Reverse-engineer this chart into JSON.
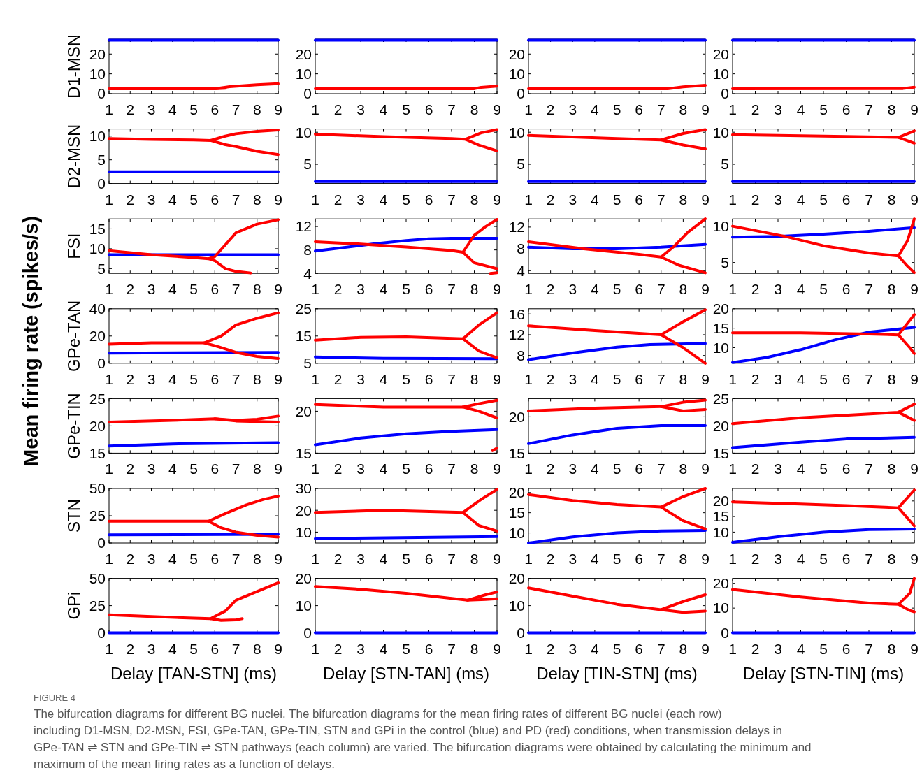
{
  "chart_data": [
    {
      "type": "line",
      "ylabel": "D1-MSN",
      "xlim": [
        1,
        9
      ],
      "xticks": [
        1,
        2,
        3,
        4,
        5,
        6,
        7,
        8,
        9
      ],
      "ylim": [
        0,
        27.5
      ],
      "yticks": [
        0,
        10,
        20
      ],
      "annotations": [
        "Mean firing rate (spikes/s)"
      ],
      "series": [
        {
          "color": "#0000ff",
          "x": [
            1,
            9
          ],
          "values": [
            27,
            27
          ]
        },
        {
          "color": "#ff0000",
          "x": [
            1,
            6,
            6.7,
            8,
            9
          ],
          "values": [
            2.5,
            2.5,
            3.5,
            4.5,
            5
          ]
        },
        {
          "color": "#ff0000",
          "x": [
            6,
            6.5
          ],
          "values": [
            2.5,
            2.7
          ]
        }
      ]
    },
    {
      "type": "line",
      "xlim": [
        1,
        9
      ],
      "xticks": [
        1,
        2,
        3,
        4,
        5,
        6,
        7,
        8,
        9
      ],
      "ylim": [
        0,
        27.5
      ],
      "yticks": [
        0,
        10,
        20
      ],
      "series": [
        {
          "color": "#0000ff",
          "x": [
            1,
            9
          ],
          "values": [
            27,
            27
          ]
        },
        {
          "color": "#ff0000",
          "x": [
            1,
            8,
            8.3,
            9
          ],
          "values": [
            2.5,
            2.5,
            3.2,
            3.8
          ]
        }
      ]
    },
    {
      "type": "line",
      "xlim": [
        1,
        9
      ],
      "xticks": [
        1,
        2,
        3,
        4,
        5,
        6,
        7,
        8,
        9
      ],
      "ylim": [
        0,
        27.5
      ],
      "yticks": [
        0,
        10,
        20
      ],
      "series": [
        {
          "color": "#0000ff",
          "x": [
            1,
            9
          ],
          "values": [
            27,
            27
          ]
        },
        {
          "color": "#ff0000",
          "x": [
            1,
            7.3,
            8,
            9
          ],
          "values": [
            2.5,
            2.5,
            3.4,
            4.2
          ]
        }
      ]
    },
    {
      "type": "line",
      "xlim": [
        1,
        9
      ],
      "xticks": [
        1,
        2,
        3,
        4,
        5,
        6,
        7,
        8,
        9
      ],
      "ylim": [
        0,
        27.5
      ],
      "yticks": [
        0,
        10,
        20
      ],
      "series": [
        {
          "color": "#0000ff",
          "x": [
            1,
            9
          ],
          "values": [
            27,
            27
          ]
        },
        {
          "color": "#ff0000",
          "x": [
            1,
            8.5,
            9
          ],
          "values": [
            2.5,
            2.6,
            3.3
          ]
        }
      ]
    },
    {
      "type": "line",
      "ylabel": "D2-MSN",
      "xlim": [
        1,
        9
      ],
      "xticks": [
        1,
        2,
        3,
        4,
        5,
        6,
        7,
        8,
        9
      ],
      "ylim": [
        0,
        11.5
      ],
      "yticks": [
        0,
        5,
        10
      ],
      "series": [
        {
          "color": "#0000ff",
          "x": [
            1,
            9
          ],
          "values": [
            2.5,
            2.5
          ]
        },
        {
          "color": "#ff0000",
          "x": [
            1,
            3,
            5,
            5.8,
            6.5,
            7,
            8,
            9
          ],
          "values": [
            9.5,
            9.3,
            9.2,
            9.1,
            10,
            10.5,
            11,
            11.3
          ]
        },
        {
          "color": "#ff0000",
          "x": [
            5.8,
            6.5,
            7,
            8,
            9
          ],
          "values": [
            9.1,
            8.2,
            7.8,
            6.8,
            6.1
          ]
        }
      ]
    },
    {
      "type": "line",
      "xlim": [
        1,
        9
      ],
      "xticks": [
        1,
        2,
        3,
        4,
        5,
        6,
        7,
        8,
        9
      ],
      "ylim": [
        2,
        10.5
      ],
      "yticks": [
        5,
        10
      ],
      "series": [
        {
          "color": "#0000ff",
          "x": [
            1,
            9
          ],
          "values": [
            2.3,
            2.3
          ]
        },
        {
          "color": "#ff0000",
          "x": [
            1,
            4,
            7,
            7.6,
            8.3,
            9
          ],
          "values": [
            9.7,
            9.3,
            9,
            8.9,
            9.9,
            10.4
          ]
        },
        {
          "color": "#ff0000",
          "x": [
            7.6,
            8.2,
            9
          ],
          "values": [
            8.9,
            8,
            7.1
          ]
        }
      ]
    },
    {
      "type": "line",
      "xlim": [
        1,
        9
      ],
      "xticks": [
        1,
        2,
        3,
        4,
        5,
        6,
        7,
        8,
        9
      ],
      "ylim": [
        2,
        10.5
      ],
      "yticks": [
        5,
        10
      ],
      "series": [
        {
          "color": "#0000ff",
          "x": [
            1,
            9
          ],
          "values": [
            2.3,
            2.3
          ]
        },
        {
          "color": "#ff0000",
          "x": [
            1,
            5,
            7,
            8,
            9
          ],
          "values": [
            9.5,
            9,
            8.8,
            9.8,
            10.4
          ]
        },
        {
          "color": "#ff0000",
          "x": [
            7,
            8,
            9
          ],
          "values": [
            8.8,
            8,
            7.4
          ]
        }
      ]
    },
    {
      "type": "line",
      "xlim": [
        1,
        9
      ],
      "xticks": [
        1,
        2,
        3,
        4,
        5,
        6,
        7,
        8,
        9
      ],
      "ylim": [
        2,
        10.5
      ],
      "yticks": [
        5,
        10
      ],
      "series": [
        {
          "color": "#0000ff",
          "x": [
            1,
            9
          ],
          "values": [
            2.3,
            2.3
          ]
        },
        {
          "color": "#ff0000",
          "x": [
            1,
            5,
            8.3,
            9
          ],
          "values": [
            9.6,
            9.4,
            9.2,
            10.2
          ]
        },
        {
          "color": "#ff0000",
          "x": [
            8.3,
            9
          ],
          "values": [
            9.2,
            8.3
          ]
        }
      ]
    },
    {
      "type": "line",
      "ylabel": "FSI",
      "xlim": [
        1,
        9
      ],
      "xticks": [
        1,
        2,
        3,
        4,
        5,
        6,
        7,
        8,
        9
      ],
      "ylim": [
        3.8,
        17.5
      ],
      "yticks": [
        5,
        10,
        15
      ],
      "series": [
        {
          "color": "#0000ff",
          "x": [
            1,
            9
          ],
          "values": [
            8.5,
            8.5
          ]
        },
        {
          "color": "#ff0000",
          "x": [
            1,
            3,
            5,
            5.7,
            6,
            6.5,
            7,
            8,
            9
          ],
          "values": [
            9.5,
            8.5,
            7.8,
            7.5,
            8,
            11,
            14,
            16.2,
            17.3
          ]
        },
        {
          "color": "#ff0000",
          "x": [
            5.7,
            6,
            6.5,
            7,
            7.7
          ],
          "values": [
            7.5,
            7,
            5,
            4.3,
            3.9
          ]
        }
      ]
    },
    {
      "type": "line",
      "xlim": [
        1,
        9
      ],
      "xticks": [
        1,
        2,
        3,
        4,
        5,
        6,
        7,
        8,
        9
      ],
      "ylim": [
        4,
        13.3
      ],
      "yticks": [
        4,
        8,
        12
      ],
      "series": [
        {
          "color": "#0000ff",
          "x": [
            1,
            3.5,
            5,
            6,
            7,
            9
          ],
          "values": [
            7.8,
            9,
            9.6,
            9.9,
            10,
            10
          ]
        },
        {
          "color": "#ff0000",
          "x": [
            1,
            3,
            5,
            7,
            7.5,
            8,
            8.5,
            9
          ],
          "values": [
            9.4,
            9,
            8.5,
            7.9,
            7.6,
            10.5,
            12,
            13.2
          ]
        },
        {
          "color": "#ff0000",
          "x": [
            7.5,
            8,
            9
          ],
          "values": [
            7.6,
            5.8,
            4.8
          ]
        },
        {
          "color": "#ff0000",
          "x": [
            8.7,
            9
          ],
          "values": [
            4,
            4.1
          ]
        }
      ]
    },
    {
      "type": "line",
      "xlim": [
        1,
        9
      ],
      "xticks": [
        1,
        2,
        3,
        4,
        5,
        6,
        7,
        8,
        9
      ],
      "ylim": [
        3.5,
        13.5
      ],
      "yticks": [
        4,
        8,
        12
      ],
      "series": [
        {
          "color": "#0000ff",
          "x": [
            1,
            3,
            5,
            7,
            9
          ],
          "values": [
            8.3,
            8,
            8,
            8.3,
            8.8
          ]
        },
        {
          "color": "#ff0000",
          "x": [
            1,
            3.5,
            6,
            7,
            7.6,
            8.2,
            9
          ],
          "values": [
            9.3,
            8,
            7,
            6.5,
            8.5,
            11,
            13.5
          ]
        },
        {
          "color": "#ff0000",
          "x": [
            7,
            7.8,
            9
          ],
          "values": [
            6.5,
            5,
            3.6
          ]
        }
      ]
    },
    {
      "type": "line",
      "xlim": [
        1,
        9
      ],
      "xticks": [
        1,
        2,
        3,
        4,
        5,
        6,
        7,
        8,
        9
      ],
      "ylim": [
        3.5,
        11
      ],
      "yticks": [
        5,
        10
      ],
      "series": [
        {
          "color": "#0000ff",
          "x": [
            1,
            3,
            5,
            7,
            9
          ],
          "values": [
            8.5,
            8.6,
            8.9,
            9.3,
            9.8
          ]
        },
        {
          "color": "#ff0000",
          "x": [
            1,
            3.3,
            5,
            7,
            8.3,
            8.7,
            9
          ],
          "values": [
            10,
            8.6,
            7.3,
            6.3,
            5.9,
            8,
            11
          ]
        },
        {
          "color": "#ff0000",
          "x": [
            8.3,
            8.7,
            9
          ],
          "values": [
            5.9,
            4.5,
            3.6
          ]
        }
      ]
    },
    {
      "type": "line",
      "ylabel": "GPe-TAN",
      "xlim": [
        1,
        9
      ],
      "xticks": [
        1,
        2,
        3,
        4,
        5,
        6,
        7,
        8,
        9
      ],
      "ylim": [
        0,
        40
      ],
      "yticks": [
        0,
        20,
        40
      ],
      "series": [
        {
          "color": "#0000ff",
          "x": [
            1,
            9
          ],
          "values": [
            7.5,
            8
          ]
        },
        {
          "color": "#ff0000",
          "x": [
            1,
            3,
            5.5,
            6.3,
            7,
            8,
            9
          ],
          "values": [
            14,
            15,
            15,
            20,
            28,
            33,
            37
          ]
        },
        {
          "color": "#ff0000",
          "x": [
            5.5,
            6.2,
            7,
            8,
            9
          ],
          "values": [
            15,
            12,
            8,
            5,
            3.5
          ]
        }
      ]
    },
    {
      "type": "line",
      "xlim": [
        1,
        9
      ],
      "xticks": [
        1,
        2,
        3,
        4,
        5,
        6,
        7,
        8,
        9
      ],
      "ylim": [
        5,
        25
      ],
      "yticks": [
        5,
        15,
        25
      ],
      "series": [
        {
          "color": "#0000ff",
          "x": [
            1,
            4,
            9
          ],
          "values": [
            7.3,
            6.8,
            6.7
          ]
        },
        {
          "color": "#ff0000",
          "x": [
            1,
            3,
            5,
            7.5,
            8.2,
            9
          ],
          "values": [
            13.5,
            14.5,
            14.7,
            14,
            19,
            23.5
          ]
        },
        {
          "color": "#ff0000",
          "x": [
            7.5,
            8.2,
            9
          ],
          "values": [
            14,
            9.5,
            7
          ]
        }
      ]
    },
    {
      "type": "line",
      "xlim": [
        1,
        9
      ],
      "xticks": [
        1,
        2,
        3,
        4,
        5,
        6,
        7,
        8,
        9
      ],
      "ylim": [
        6.5,
        17
      ],
      "yticks": [
        8,
        12,
        16
      ],
      "series": [
        {
          "color": "#0000ff",
          "x": [
            1,
            3,
            5,
            6.5,
            9
          ],
          "values": [
            7.2,
            8.5,
            9.6,
            10.1,
            10.3
          ]
        },
        {
          "color": "#ff0000",
          "x": [
            1,
            4,
            7,
            8,
            9
          ],
          "values": [
            13.7,
            12.8,
            12,
            14.5,
            16.8
          ]
        },
        {
          "color": "#ff0000",
          "x": [
            7,
            8,
            9
          ],
          "values": [
            12,
            9.5,
            6.5
          ]
        }
      ]
    },
    {
      "type": "line",
      "xlim": [
        1,
        9
      ],
      "xticks": [
        1,
        2,
        3,
        4,
        5,
        6,
        7,
        8,
        9
      ],
      "ylim": [
        6,
        20
      ],
      "yticks": [
        10,
        15,
        20
      ],
      "series": [
        {
          "color": "#0000ff",
          "x": [
            1,
            2.5,
            4,
            5.5,
            7,
            9
          ],
          "values": [
            6.2,
            7.5,
            9.5,
            12,
            14,
            15.2
          ]
        },
        {
          "color": "#ff0000",
          "x": [
            1,
            4,
            7,
            8.3,
            8.8,
            9
          ],
          "values": [
            13.8,
            13.8,
            13.5,
            13.3,
            17,
            18.5
          ]
        },
        {
          "color": "#ff0000",
          "x": [
            8.3,
            8.8,
            9
          ],
          "values": [
            13.3,
            10,
            8.5
          ]
        }
      ]
    },
    {
      "type": "line",
      "ylabel": "GPe-TIN",
      "xlim": [
        1,
        9
      ],
      "xticks": [
        1,
        2,
        3,
        4,
        5,
        6,
        7,
        8,
        9
      ],
      "ylim": [
        15,
        25
      ],
      "yticks": [
        15,
        20,
        25
      ],
      "series": [
        {
          "color": "#0000ff",
          "x": [
            1,
            4,
            9
          ],
          "values": [
            16.3,
            16.7,
            16.9
          ]
        },
        {
          "color": "#ff0000",
          "x": [
            1,
            4,
            6,
            7,
            8,
            9
          ],
          "values": [
            20.7,
            21,
            21.3,
            21,
            21.2,
            21.8
          ]
        },
        {
          "color": "#ff0000",
          "x": [
            6,
            7,
            9
          ],
          "values": [
            21.3,
            20.9,
            20.7
          ]
        }
      ]
    },
    {
      "type": "line",
      "xlim": [
        1,
        9
      ],
      "xticks": [
        1,
        2,
        3,
        4,
        5,
        6,
        7,
        8,
        9
      ],
      "ylim": [
        15,
        21.5
      ],
      "yticks": [
        15,
        20
      ],
      "series": [
        {
          "color": "#0000ff",
          "x": [
            1,
            3,
            5,
            7,
            9
          ],
          "values": [
            16,
            16.8,
            17.3,
            17.6,
            17.8
          ]
        },
        {
          "color": "#ff0000",
          "x": [
            1,
            4,
            7.5,
            8.2,
            9
          ],
          "values": [
            20.8,
            20.5,
            20.5,
            20.9,
            21.3
          ]
        },
        {
          "color": "#ff0000",
          "x": [
            7.5,
            8.2,
            9
          ],
          "values": [
            20.5,
            20,
            19.2
          ]
        },
        {
          "color": "#ff0000",
          "x": [
            8.8,
            9
          ],
          "values": [
            15.3,
            15.6
          ]
        }
      ]
    },
    {
      "type": "line",
      "xlim": [
        1,
        9
      ],
      "xticks": [
        1,
        2,
        3,
        4,
        5,
        6,
        7,
        8,
        9
      ],
      "ylim": [
        15,
        22.5
      ],
      "yticks": [
        15,
        20
      ],
      "series": [
        {
          "color": "#0000ff",
          "x": [
            1,
            3,
            5,
            7,
            9
          ],
          "values": [
            16.3,
            17.5,
            18.4,
            18.8,
            18.8
          ]
        },
        {
          "color": "#ff0000",
          "x": [
            1,
            4,
            7,
            8,
            9
          ],
          "values": [
            20.8,
            21.2,
            21.4,
            22,
            22.3
          ]
        },
        {
          "color": "#ff0000",
          "x": [
            7,
            8,
            9
          ],
          "values": [
            21.4,
            20.8,
            21
          ]
        }
      ]
    },
    {
      "type": "line",
      "xlim": [
        1,
        9
      ],
      "xticks": [
        1,
        2,
        3,
        4,
        5,
        6,
        7,
        8,
        9
      ],
      "ylim": [
        15,
        25
      ],
      "yticks": [
        15,
        20,
        25
      ],
      "series": [
        {
          "color": "#0000ff",
          "x": [
            1,
            4,
            6,
            9
          ],
          "values": [
            16,
            17,
            17.6,
            17.9
          ]
        },
        {
          "color": "#ff0000",
          "x": [
            1,
            4,
            8.3,
            9
          ],
          "values": [
            20.4,
            21.5,
            22.5,
            24
          ]
        },
        {
          "color": "#ff0000",
          "x": [
            8.3,
            9
          ],
          "values": [
            22.5,
            21
          ]
        }
      ]
    },
    {
      "type": "line",
      "ylabel": "STN",
      "xlim": [
        1,
        9
      ],
      "xticks": [
        1,
        2,
        3,
        4,
        5,
        6,
        7,
        8,
        9
      ],
      "ylim": [
        0,
        50
      ],
      "yticks": [
        0,
        25,
        50
      ],
      "series": [
        {
          "color": "#0000ff",
          "x": [
            1,
            9
          ],
          "values": [
            7.5,
            8
          ]
        },
        {
          "color": "#ff0000",
          "x": [
            1,
            5.7,
            6.5,
            7.5,
            8.3,
            9
          ],
          "values": [
            20,
            20,
            27,
            35,
            40,
            43
          ]
        },
        {
          "color": "#ff0000",
          "x": [
            5.7,
            6.3,
            7,
            8,
            9
          ],
          "values": [
            20,
            14,
            10,
            7,
            5.5
          ]
        }
      ]
    },
    {
      "type": "line",
      "xlim": [
        1,
        9
      ],
      "xticks": [
        1,
        2,
        3,
        4,
        5,
        6,
        7,
        8,
        9
      ],
      "ylim": [
        5,
        30
      ],
      "yticks": [
        10,
        20,
        30
      ],
      "series": [
        {
          "color": "#0000ff",
          "x": [
            1,
            9
          ],
          "values": [
            7,
            8
          ]
        },
        {
          "color": "#ff0000",
          "x": [
            1,
            4,
            7.5,
            8.3,
            9
          ],
          "values": [
            19,
            20,
            19,
            25,
            29.5
          ]
        },
        {
          "color": "#ff0000",
          "x": [
            7.5,
            8.2,
            9
          ],
          "values": [
            19,
            13,
            10.5
          ]
        }
      ]
    },
    {
      "type": "line",
      "xlim": [
        1,
        9
      ],
      "xticks": [
        1,
        2,
        3,
        4,
        5,
        6,
        7,
        8,
        9
      ],
      "ylim": [
        7.5,
        21
      ],
      "yticks": [
        10,
        15,
        20
      ],
      "series": [
        {
          "color": "#0000ff",
          "x": [
            1,
            3,
            5,
            7,
            9
          ],
          "values": [
            7.5,
            9,
            10,
            10.5,
            10.6
          ]
        },
        {
          "color": "#ff0000",
          "x": [
            1,
            3,
            5,
            7,
            8,
            9
          ],
          "values": [
            19.5,
            18,
            17,
            16.4,
            19,
            21
          ]
        },
        {
          "color": "#ff0000",
          "x": [
            7,
            8,
            9
          ],
          "values": [
            16.4,
            13,
            11
          ]
        }
      ]
    },
    {
      "type": "line",
      "xlim": [
        1,
        9
      ],
      "xticks": [
        1,
        2,
        3,
        4,
        5,
        6,
        7,
        8,
        9
      ],
      "ylim": [
        6.5,
        24
      ],
      "yticks": [
        10,
        15,
        20
      ],
      "series": [
        {
          "color": "#0000ff",
          "x": [
            1,
            3,
            5,
            7,
            9
          ],
          "values": [
            6.7,
            8.5,
            10,
            10.8,
            11
          ]
        },
        {
          "color": "#ff0000",
          "x": [
            1,
            4,
            6,
            8.3,
            9
          ],
          "values": [
            19.7,
            19,
            18.5,
            17.8,
            23.5
          ]
        },
        {
          "color": "#ff0000",
          "x": [
            8.3,
            9
          ],
          "values": [
            17.8,
            12
          ]
        }
      ]
    },
    {
      "type": "line",
      "ylabel": "GPi",
      "xlabel": "Delay [TAN-STN] (ms)",
      "xlim": [
        1,
        9
      ],
      "xticks": [
        1,
        2,
        3,
        4,
        5,
        6,
        7,
        8,
        9
      ],
      "ylim": [
        0,
        50
      ],
      "yticks": [
        0,
        25,
        50
      ],
      "series": [
        {
          "color": "#0000ff",
          "x": [
            1,
            9
          ],
          "values": [
            0,
            0
          ]
        },
        {
          "color": "#ff0000",
          "x": [
            1,
            3,
            5,
            5.8,
            6.5,
            7,
            8,
            9
          ],
          "values": [
            16.5,
            15,
            13.5,
            13,
            20,
            30,
            38,
            46
          ]
        },
        {
          "color": "#ff0000",
          "x": [
            5.8,
            6.3,
            7,
            7.3
          ],
          "values": [
            13,
            11.5,
            12,
            13
          ]
        }
      ]
    },
    {
      "type": "line",
      "xlabel": "Delay [STN-TAN] (ms)",
      "xlim": [
        1,
        9
      ],
      "xticks": [
        1,
        2,
        3,
        4,
        5,
        6,
        7,
        8,
        9
      ],
      "ylim": [
        0,
        20
      ],
      "yticks": [
        0,
        10,
        20
      ],
      "series": [
        {
          "color": "#0000ff",
          "x": [
            1,
            9
          ],
          "values": [
            0,
            0
          ]
        },
        {
          "color": "#ff0000",
          "x": [
            1,
            3,
            5,
            7.7,
            8.5,
            9
          ],
          "values": [
            17,
            16,
            14.5,
            12,
            14,
            15
          ]
        },
        {
          "color": "#ff0000",
          "x": [
            7.7,
            8.5,
            9
          ],
          "values": [
            12,
            12.3,
            12.5
          ]
        }
      ]
    },
    {
      "type": "line",
      "xlabel": "Delay [TIN-STN] (ms)",
      "xlim": [
        1,
        9
      ],
      "xticks": [
        1,
        2,
        3,
        4,
        5,
        6,
        7,
        8,
        9
      ],
      "ylim": [
        0,
        20
      ],
      "yticks": [
        0,
        10,
        20
      ],
      "series": [
        {
          "color": "#0000ff",
          "x": [
            1,
            9
          ],
          "values": [
            0,
            0
          ]
        },
        {
          "color": "#ff0000",
          "x": [
            1,
            3,
            5,
            7,
            8,
            9
          ],
          "values": [
            16.5,
            13.5,
            10.5,
            8.5,
            11.5,
            14
          ]
        },
        {
          "color": "#ff0000",
          "x": [
            7,
            8,
            9
          ],
          "values": [
            8.5,
            7.5,
            8
          ]
        }
      ]
    },
    {
      "type": "line",
      "xlabel": "Delay [STN-TIN] (ms)",
      "xlim": [
        1,
        9
      ],
      "xticks": [
        1,
        2,
        3,
        4,
        5,
        6,
        7,
        8,
        9
      ],
      "ylim": [
        0,
        22
      ],
      "yticks": [
        0,
        10,
        20
      ],
      "annotations": [
        "FIGURE 4",
        "The bifurcation diagrams for different BG nuclei. The bifurcation diagrams for the mean firing rates of different BG nuclei (each row) including D1-MSN, D2-MSN, FSI, GPe-TAN, GPe-TIN, STN and GPi in the control (blue) and PD (red) conditions, when transmission delays in GPe-TAN ⇌ STN and GPe-TIN ⇌ STN pathways (each column) are varied. The bifurcation diagrams were obtained by calculating the minimum and maximum of the mean firing rates as a function of delays."
      ],
      "series": [
        {
          "color": "#0000ff",
          "x": [
            1,
            9
          ],
          "values": [
            0,
            0
          ]
        },
        {
          "color": "#ff0000",
          "x": [
            1,
            4,
            7,
            8.3,
            8.8,
            9
          ],
          "values": [
            17.5,
            14.5,
            12,
            11.5,
            16,
            22
          ]
        },
        {
          "color": "#ff0000",
          "x": [
            8.3,
            8.8,
            9
          ],
          "values": [
            11.5,
            9,
            8.5
          ]
        }
      ]
    }
  ]
}
